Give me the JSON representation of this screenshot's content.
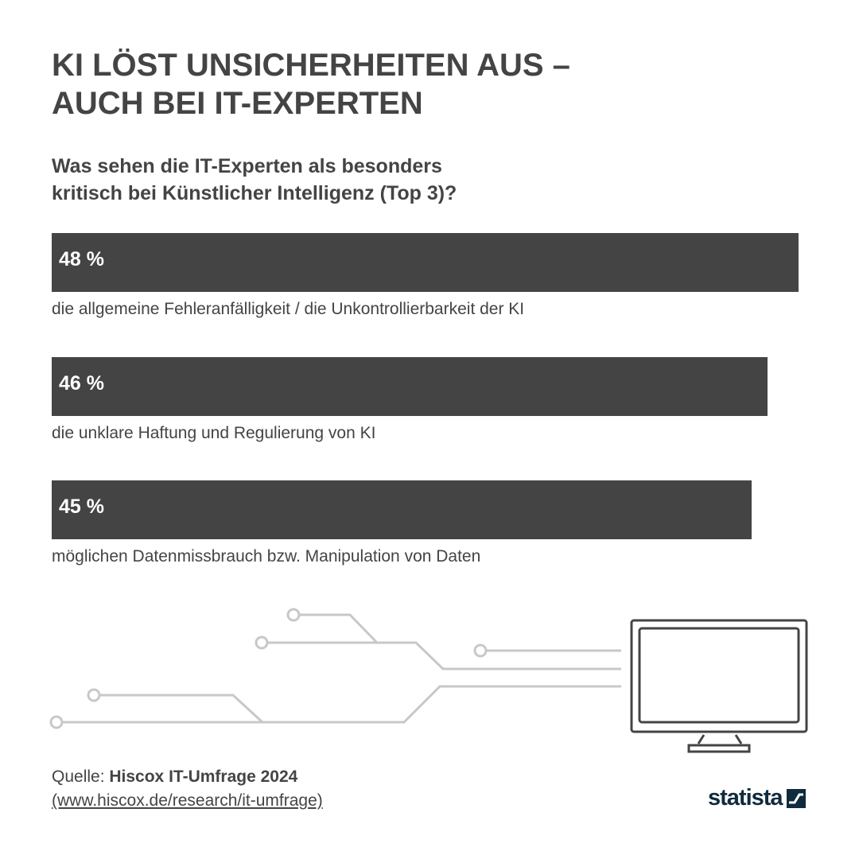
{
  "title_line1": "KI LÖST UNSICHERHEITEN AUS –",
  "title_line2": "AUCH BEI IT-EXPERTEN",
  "subtitle_line1": "Was sehen die IT-Experten als besonders",
  "subtitle_line2": "kritisch bei Künstlicher Intelligenz (Top 3)?",
  "chart_data": {
    "type": "bar",
    "orientation": "horizontal",
    "categories": [
      "die allgemeine Fehleranfälligkeit / die Unkontrollierbarkeit der KI",
      "die unklare Haftung und Regulierung von KI",
      "möglichen Datenmissbrauch bzw. Manipulation von Daten"
    ],
    "values": [
      48,
      46,
      45
    ],
    "value_labels": [
      "48 %",
      "46 %",
      "45 %"
    ],
    "unit": "%",
    "bar_color": "#444444",
    "grid": false
  },
  "source": {
    "prefix": "Quelle: ",
    "name": "Hiscox IT-Umfrage 2024",
    "url_text": "(www.hiscox.de/research/it-umfrage)"
  },
  "logo": {
    "text": "statista",
    "icon": "statista-logo-icon"
  }
}
